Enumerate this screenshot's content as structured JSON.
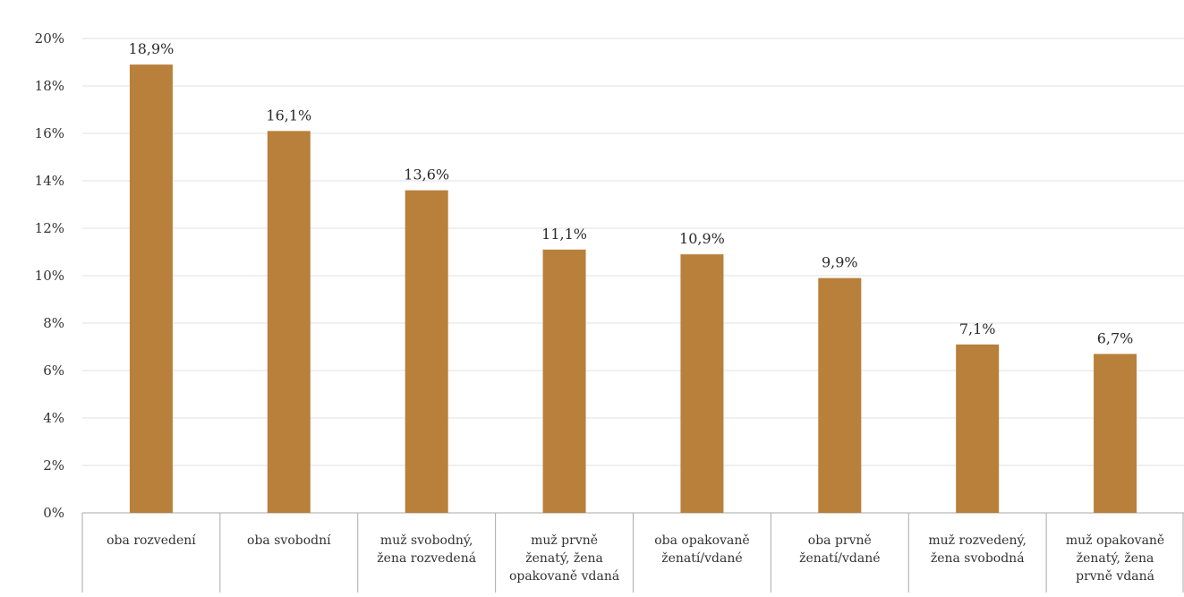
{
  "chart_data": {
    "type": "bar",
    "categories": [
      [
        "oba rozvedení"
      ],
      [
        "oba svobodní"
      ],
      [
        "muž svobodný,",
        "žena rozvedená"
      ],
      [
        "muž prvně",
        "ženatý, žena",
        "opakovaně vdaná"
      ],
      [
        "oba opakovaně",
        "ženatí/vdané"
      ],
      [
        "oba prvně",
        "ženatí/vdané"
      ],
      [
        "muž rozvedený,",
        "žena svobodná"
      ],
      [
        "muž opakovaně",
        "ženatý, žena",
        "prvně vdaná"
      ]
    ],
    "values": [
      18.9,
      16.1,
      13.6,
      11.1,
      10.9,
      9.9,
      7.1,
      6.7
    ],
    "data_labels": [
      "18,9%",
      "16,1%",
      "13,6%",
      "11,1%",
      "10,9%",
      "9,9%",
      "7,1%",
      "6,7%"
    ],
    "yticks": [
      0,
      2,
      4,
      6,
      8,
      10,
      12,
      14,
      16,
      18,
      20
    ],
    "ytick_labels": [
      "0%",
      "2%",
      "4%",
      "6%",
      "8%",
      "10%",
      "12%",
      "14%",
      "16%",
      "18%",
      "20%"
    ],
    "ylim": [
      0,
      20
    ],
    "grid": true,
    "bar_color": "#b8803a",
    "title": "",
    "xlabel": "",
    "ylabel": ""
  }
}
